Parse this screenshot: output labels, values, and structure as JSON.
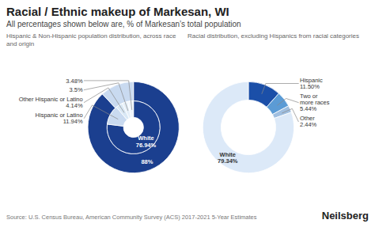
{
  "title": "Racial / Ethnic makeup of Markesan, WI",
  "subtitle": "All percentages shown below are, % of Markesan’s total population",
  "caption": "Source: U.S. Census Bureau, American Community Survey (ACS) 2017-2021 5-Year Estimates",
  "annotations": [
    "Neilsberg"
  ],
  "chart_data": [
    {
      "type": "donut",
      "title": "Hispanic & Non-Hispanic population distribution, across race and origin",
      "data_labels": true,
      "series": [
        {
          "categories": [
            null,
            null
          ],
          "values": [
            88.06,
            11.94
          ],
          "value_labels": [
            "88%",
            null
          ],
          "colors": [
            "#1b3f8f",
            "#c9daf0"
          ]
        },
        {
          "categories": [
            "White",
            "Hispanic or Latino",
            "Other Hispanic or Latino",
            null,
            null
          ],
          "values": [
            76.94,
            11.94,
            4.14,
            3.5,
            3.48
          ],
          "value_labels": [
            "76.94%",
            "11.94%",
            "4.14%",
            "3.5%",
            "3.48%"
          ],
          "colors": [
            "#1b3f8f",
            "#c9daf0",
            "#d9e8f5",
            "#e5eff8",
            "#eef4fb"
          ]
        }
      ]
    },
    {
      "type": "donut",
      "title": "Racial distribution, excluding Hispanics from racial categories",
      "data_labels": true,
      "categories": [
        "Hispanic",
        "Two or\nmore races",
        "Other",
        "White"
      ],
      "values": [
        11.5,
        5.44,
        2.44,
        79.34
      ],
      "value_labels": [
        "11.50%",
        "5.44%",
        "2.44%",
        "79.34%"
      ],
      "colors": [
        "#1b4fa8",
        "#5b9bd5",
        "#a0bfe0",
        "#dce9f8"
      ]
    }
  ]
}
